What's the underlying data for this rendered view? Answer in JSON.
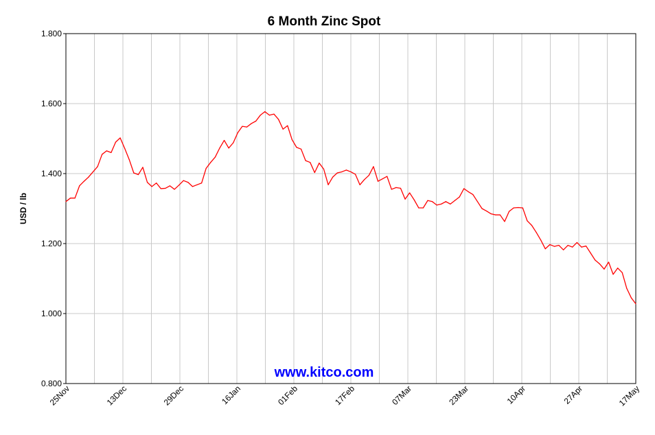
{
  "chart_data": {
    "type": "line",
    "title": "6 Month Zinc Spot",
    "xlabel": "",
    "ylabel": "USD / lb",
    "ylim": [
      0.8,
      1.8
    ],
    "yticks": [
      "0.800",
      "1.000",
      "1.200",
      "1.400",
      "1.600",
      "1.800"
    ],
    "xtick_labels": [
      "25Nov",
      "13Dec",
      "29Dec",
      "16Jan",
      "01Feb",
      "17Feb",
      "07Mar",
      "23Mar",
      "10Apr",
      "27Apr",
      "17May"
    ],
    "grid": true,
    "line_color": "#ff0000",
    "series": [
      {
        "values": [
          1.32,
          1.33,
          1.33,
          1.365,
          1.378,
          1.39,
          1.405,
          1.42,
          1.455,
          1.465,
          1.46,
          1.49,
          1.502,
          1.472,
          1.44,
          1.402,
          1.397,
          1.418,
          1.375,
          1.363,
          1.373,
          1.357,
          1.358,
          1.365,
          1.355,
          1.367,
          1.38,
          1.375,
          1.363,
          1.368,
          1.373,
          1.415,
          1.432,
          1.447,
          1.473,
          1.495,
          1.473,
          1.488,
          1.517,
          1.535,
          1.533,
          1.543,
          1.55,
          1.567,
          1.577,
          1.567,
          1.57,
          1.555,
          1.527,
          1.537,
          1.497,
          1.475,
          1.47,
          1.437,
          1.432,
          1.403,
          1.43,
          1.413,
          1.368,
          1.39,
          1.402,
          1.405,
          1.41,
          1.405,
          1.398,
          1.368,
          1.383,
          1.395,
          1.42,
          1.378,
          1.385,
          1.392,
          1.355,
          1.36,
          1.358,
          1.327,
          1.345,
          1.325,
          1.302,
          1.302,
          1.323,
          1.32,
          1.31,
          1.313,
          1.32,
          1.313,
          1.323,
          1.333,
          1.357,
          1.348,
          1.34,
          1.32,
          1.3,
          1.293,
          1.285,
          1.282,
          1.282,
          1.263,
          1.292,
          1.302,
          1.303,
          1.302,
          1.265,
          1.252,
          1.232,
          1.21,
          1.185,
          1.197,
          1.192,
          1.195,
          1.182,
          1.195,
          1.19,
          1.203,
          1.19,
          1.193,
          1.173,
          1.153,
          1.142,
          1.127,
          1.147,
          1.112,
          1.13,
          1.117,
          1.072,
          1.045,
          1.028
        ]
      }
    ],
    "watermark": "www.kitco.com",
    "watermark_color": "#0000ff"
  }
}
